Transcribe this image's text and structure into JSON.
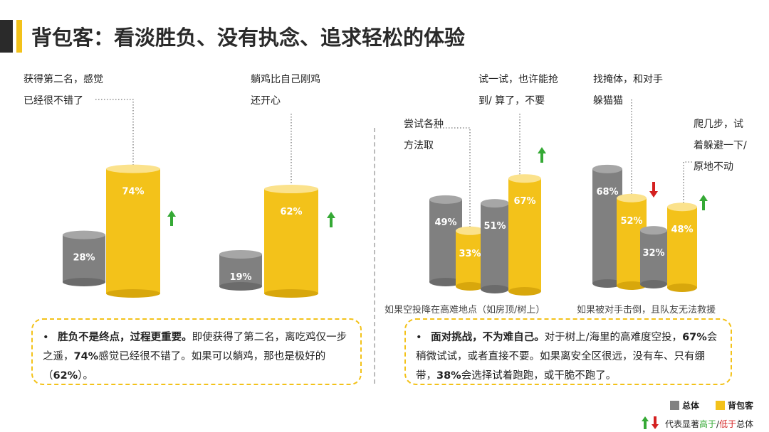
{
  "title": "背包客：看淡胜负、没有执念、追求轻松的体验",
  "colors": {
    "overall": "#808080",
    "backpacker": "#f3c21a",
    "up": "#35a935",
    "down": "#d42020"
  },
  "chart_data": [
    {
      "type": "bar",
      "series": [
        {
          "name": "总体",
          "values": [
            28
          ]
        },
        {
          "name": "背包客",
          "values": [
            74
          ]
        }
      ],
      "annotation": "获得第二名，感觉已经很不错了",
      "arrow": "up"
    },
    {
      "type": "bar",
      "series": [
        {
          "name": "总体",
          "values": [
            19
          ]
        },
        {
          "name": "背包客",
          "values": [
            62
          ]
        }
      ],
      "annotation": "躺鸡比自己刚鸡还开心",
      "arrow": "up"
    },
    {
      "type": "bar",
      "caption": "如果空投降在高难地点（如房顶/树上）",
      "categories": [
        "尝试各种方法取",
        "试一试，也许能抢到/ 算了，不要"
      ],
      "series": [
        {
          "name": "总体",
          "values": [
            49,
            51
          ]
        },
        {
          "name": "背包客",
          "values": [
            33,
            67
          ]
        }
      ],
      "arrows": [
        "down",
        "up"
      ]
    },
    {
      "type": "bar",
      "caption": "如果被对手击倒，且队友无法救援",
      "categories": [
        "找掩体，和对手躲猫猫",
        "爬几步，试着躲避一下/原地不动"
      ],
      "series": [
        {
          "name": "总体",
          "values": [
            68,
            32
          ]
        },
        {
          "name": "背包客",
          "values": [
            52,
            48
          ]
        }
      ],
      "arrows": [
        "down",
        "up"
      ]
    }
  ],
  "labels": {
    "a1_line1": "获得第二名，感觉",
    "a1_line2": "已经很不错了",
    "a2_line1": "躺鸡比自己刚鸡",
    "a2_line2": "还开心",
    "b1_line1": "尝试各种",
    "b1_line2": "方法取",
    "b2_line1": "试一试，也许能抢",
    "b2_line2": "到/ 算了，不要",
    "c1_line1": "找掩体，和对手",
    "c1_line2": "躲猫猫",
    "c2_line1": "爬几步，试",
    "c2_line2": "着躲避一下/",
    "c2_line3": "原地不动"
  },
  "captions": {
    "left": "如果空投降在高难地点（如房顶/树上）",
    "right": "如果被对手击倒，且队友无法救援"
  },
  "notes": {
    "bullet": "•",
    "left_bold": "胜负不是终点，过程更重要。",
    "left_text1": "即使获得了第二名，离吃鸡仅一步之遥，",
    "left_pct1": "74%",
    "left_text2": "感觉已经很不错了。如果可以躺鸡，那也是极好的（",
    "left_pct2": "62%",
    "left_text3": "）。",
    "right_bold": "面对挑战，不为难自己。",
    "right_text1": "对于树上/海里的高难度空投，",
    "right_pct1": "67%",
    "right_text2": "会稍微试试，或者直接不要。如果离安全区很远，没有车、只有绷带，",
    "right_pct2": "38%",
    "right_text3": "会选择试着跑跑，或干脆不跑了。"
  },
  "legend": {
    "overall": "总体",
    "backpacker": "背包客",
    "arrow_prefix": "代表显著",
    "higher": "高于",
    "slash": "/",
    "lower": "低于",
    "arrow_suffix": "总体"
  }
}
